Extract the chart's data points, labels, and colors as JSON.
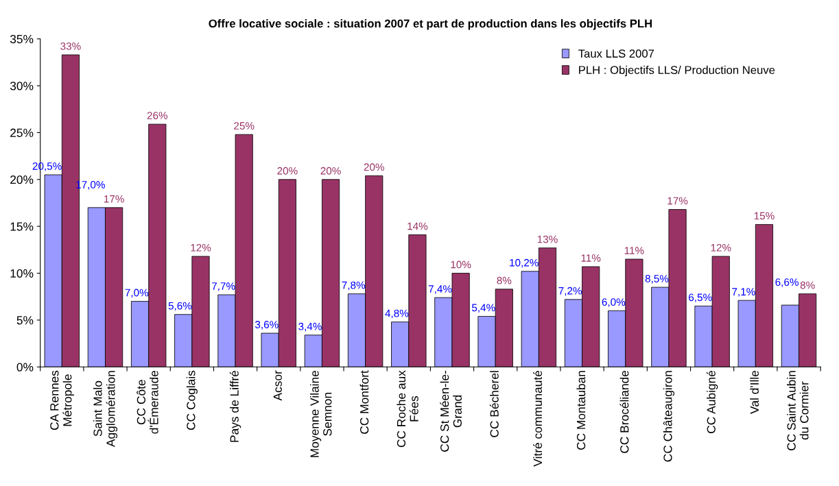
{
  "chart_data": {
    "type": "bar",
    "title": "Offre locative sociale : situation 2007 et part de production dans les objectifs PLH",
    "categories": [
      "CA Rennes\nMétropole",
      "Saint Malo\nAgglomération",
      "CC Côte\nd'Émeraude",
      "CC Coglais",
      "Pays de Liffré",
      "Acsor",
      "Moyenne Vilaine\nSemnon",
      "CC Montfort",
      "CC Roche aux\nFées",
      "CC St Méen-le-\nGrand",
      "CC Bécherel",
      "Vitré communauté",
      "CC Montauban",
      "CC Brocéliande",
      "CC Châteaugiron",
      "CC Aubigné",
      "Val d'Ille",
      "CC Saint Aubin\ndu Cormier"
    ],
    "series": [
      {
        "name": "Taux LLS 2007",
        "color": "#9999ff",
        "values": [
          20.5,
          17.0,
          7.0,
          5.6,
          7.7,
          3.6,
          3.4,
          7.8,
          4.8,
          7.4,
          5.4,
          10.2,
          7.2,
          6.0,
          8.5,
          6.5,
          7.1,
          6.6
        ],
        "value_labels": [
          "20,5%",
          "17,0%",
          "7,0%",
          "5,6%",
          "7,7%",
          "3,6%",
          "3,4%",
          "7,8%",
          "4,8%",
          "7,4%",
          "5,4%",
          "10,2%",
          "7,2%",
          "6,0%",
          "8,5%",
          "6,5%",
          "7,1%",
          "6,6%"
        ]
      },
      {
        "name": "PLH : Objectifs LLS/ Production Neuve",
        "color": "#993366",
        "values": [
          33.3,
          17.0,
          25.9,
          11.8,
          24.8,
          20.0,
          20.0,
          20.4,
          14.1,
          10.0,
          8.3,
          12.7,
          10.7,
          11.5,
          16.8,
          11.8,
          15.2,
          7.8
        ],
        "value_labels": [
          "33%",
          "17%",
          "26%",
          "12%",
          "25%",
          "20%",
          "20%",
          "20%",
          "14%",
          "10%",
          "8%",
          "13%",
          "11%",
          "11%",
          "17%",
          "12%",
          "15%",
          "8%"
        ]
      }
    ],
    "ylim": [
      0,
      35
    ],
    "yticks": [
      {
        "value": 0,
        "label": "0%"
      },
      {
        "value": 5,
        "label": "5%"
      },
      {
        "value": 10,
        "label": "10%"
      },
      {
        "value": 15,
        "label": "15%"
      },
      {
        "value": 20,
        "label": "20%"
      },
      {
        "value": 25,
        "label": "25%"
      },
      {
        "value": 30,
        "label": "30%"
      },
      {
        "value": 35,
        "label": "35%"
      }
    ],
    "legend": "top right",
    "grid": false
  }
}
